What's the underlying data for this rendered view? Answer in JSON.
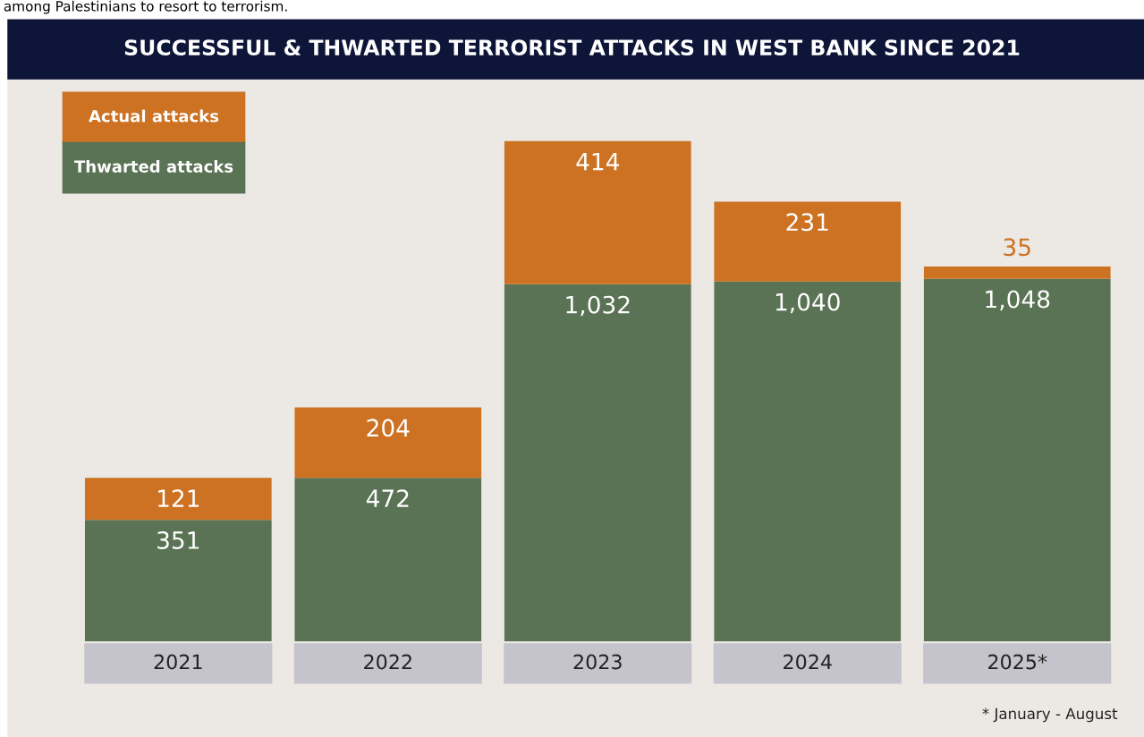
{
  "chart_data": {
    "type": "bar",
    "stacked": true,
    "legend": "top left",
    "grid": false,
    "title": "SUCCESSFUL & THWARTED TERRORIST ATTACKS IN WEST BANK SINCE 2021",
    "categories": [
      "2021",
      "2022",
      "2023",
      "2024",
      "2025*"
    ],
    "series": [
      {
        "name": "Thwarted attacks",
        "color": "#5b7355",
        "values": [
          351,
          472,
          1032,
          1040,
          1048
        ],
        "value_labels": [
          "351",
          "472",
          "1,032",
          "1,040",
          "1,048"
        ]
      },
      {
        "name": "Actual attacks",
        "color": "#cc7222",
        "values": [
          121,
          204,
          414,
          231,
          35
        ],
        "value_labels": [
          "121",
          "204",
          "414",
          "231",
          "35"
        ]
      }
    ],
    "annotations": [
      "among Palestinians to resort to terrorism.",
      "* January - August"
    ]
  }
}
